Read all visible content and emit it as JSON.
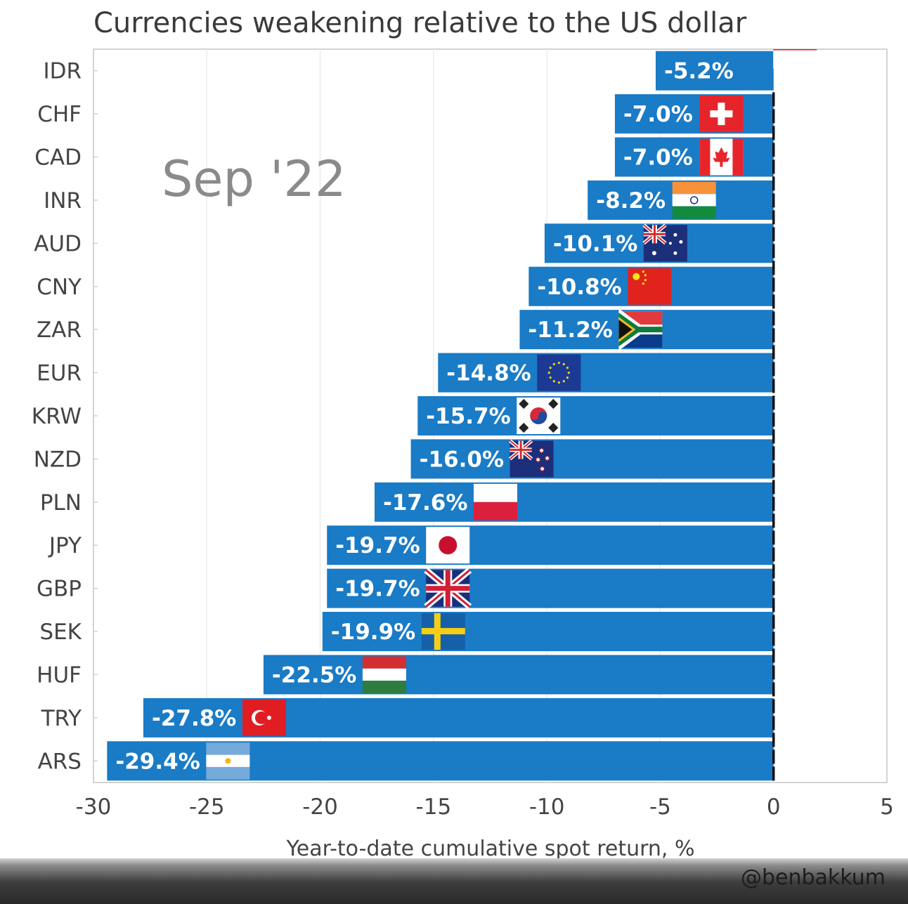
{
  "chart_data": {
    "type": "bar",
    "orientation": "horizontal",
    "title": "Currencies weakening relative to the US dollar",
    "annotation": "Sep '22",
    "xlabel": "Year-to-date cumulative spot return, %",
    "ylabel": "",
    "xlim": [
      -30,
      5
    ],
    "xticks": [
      "-30",
      "-25",
      "-20",
      "-15",
      "-10",
      "-5",
      "0",
      "5"
    ],
    "grid": "vertical",
    "categories": [
      "IDR",
      "CHF",
      "CAD",
      "INR",
      "AUD",
      "CNY",
      "ZAR",
      "EUR",
      "KRW",
      "NZD",
      "PLN",
      "JPY",
      "GBP",
      "SEK",
      "HUF",
      "TRY",
      "ARS"
    ],
    "values": [
      -5.2,
      -7.0,
      -7.0,
      -8.2,
      -10.1,
      -10.8,
      -11.2,
      -14.8,
      -15.7,
      -16.0,
      -17.6,
      -19.7,
      -19.7,
      -19.9,
      -22.5,
      -27.8,
      -29.4
    ],
    "value_labels": [
      "-5.2%",
      "-7.0%",
      "-7.0%",
      "-8.2%",
      "-10.1%",
      "-10.8%",
      "-11.2%",
      "-14.8%",
      "-15.7%",
      "-16.0%",
      "-17.6%",
      "-19.7%",
      "-19.7%",
      "-19.9%",
      "-22.5%",
      "-27.8%",
      "-29.4%"
    ],
    "flags": [
      "flag-indonesia",
      "flag-switzerland",
      "flag-canada",
      "flag-india",
      "flag-australia",
      "flag-china",
      "flag-south-africa",
      "flag-eu",
      "flag-south-korea",
      "flag-new-zealand",
      "flag-poland",
      "flag-japan",
      "flag-uk",
      "flag-sweden",
      "flag-hungary",
      "flag-turkey",
      "flag-argentina"
    ],
    "bar_color": "#1a7bc6"
  },
  "credit": "@benbakkum"
}
